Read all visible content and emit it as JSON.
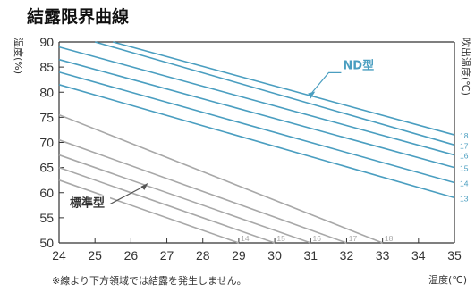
{
  "chart_data": {
    "type": "line",
    "title": "結露限界曲線",
    "xlabel": "温度(℃)",
    "ylabel": "湿度(%)",
    "right_axis_label": "吹出温度(℃)",
    "xlim": [
      24,
      35
    ],
    "ylim": [
      50,
      90
    ],
    "x_ticks": [
      "24",
      "25",
      "26",
      "27",
      "28",
      "29",
      "30",
      "31",
      "32",
      "33",
      "34",
      "35"
    ],
    "y_ticks": [
      "50",
      "55",
      "60",
      "65",
      "70",
      "75",
      "80",
      "85",
      "90"
    ],
    "grid": false,
    "groups": [
      {
        "name": "ND型",
        "color": "#4a9ec0",
        "series": [
          {
            "name": "13",
            "x": [
              24,
              35
            ],
            "y": [
              81.5,
              59.0
            ]
          },
          {
            "name": "14",
            "x": [
              24,
              35
            ],
            "y": [
              84.0,
              62.0
            ]
          },
          {
            "name": "15",
            "x": [
              24,
              35
            ],
            "y": [
              86.5,
              65.0
            ]
          },
          {
            "name": "16",
            "x": [
              24,
              35
            ],
            "y": [
              89.0,
              67.5
            ]
          },
          {
            "name": "17",
            "x": [
              25.0,
              35
            ],
            "y": [
              90.0,
              69.5
            ]
          },
          {
            "name": "18",
            "x": [
              25.5,
              35
            ],
            "y": [
              90.0,
              71.5
            ]
          }
        ]
      },
      {
        "name": "標準型",
        "color": "#a8a8a8",
        "series": [
          {
            "name": "14",
            "x": [
              24,
              29.0
            ],
            "y": [
              62.5,
              50.0
            ]
          },
          {
            "name": "15",
            "x": [
              24,
              30.0
            ],
            "y": [
              65.0,
              50.0
            ]
          },
          {
            "name": "16",
            "x": [
              24,
              31.0
            ],
            "y": [
              67.5,
              50.0
            ]
          },
          {
            "name": "17",
            "x": [
              24,
              32.0
            ],
            "y": [
              70.5,
              50.0
            ]
          },
          {
            "name": "18",
            "x": [
              24,
              33.0
            ],
            "y": [
              75.5,
              50.0
            ]
          }
        ]
      }
    ],
    "note": "※線より下方領域では結露を発生しません。"
  }
}
